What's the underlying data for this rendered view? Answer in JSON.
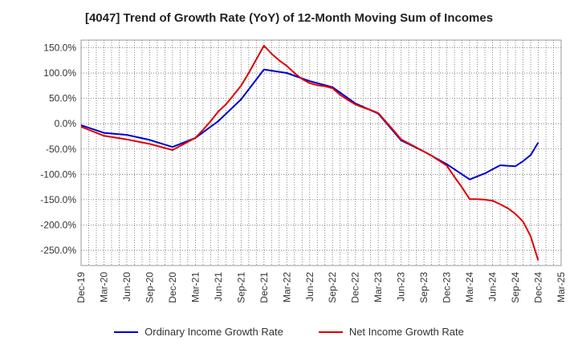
{
  "chart_data": {
    "type": "line",
    "title": "[4047]  Trend of Growth Rate (YoY) of 12-Month Moving Sum of Incomes",
    "xlabel": "",
    "ylabel": "",
    "ylim": [
      -280,
      165
    ],
    "y_ticks": [
      150,
      100,
      50,
      0,
      -50,
      -100,
      -150,
      -200,
      -250
    ],
    "y_tick_labels": [
      "150.0%",
      "100.0%",
      "50.0%",
      "0.0%",
      "-50.0%",
      "-100.0%",
      "-150.0%",
      "-200.0%",
      "-250.0%"
    ],
    "x_tick_labels": [
      "Dec-19",
      "Mar-20",
      "Jun-20",
      "Sep-20",
      "Dec-20",
      "Mar-21",
      "Jun-21",
      "Sep-21",
      "Dec-21",
      "Mar-22",
      "Jun-22",
      "Sep-22",
      "Dec-22",
      "Mar-23",
      "Jun-23",
      "Sep-23",
      "Dec-23",
      "Mar-24",
      "Jun-24",
      "Sep-24",
      "Dec-24",
      "Mar-25"
    ],
    "x_range_months": [
      0,
      63
    ],
    "grid": true,
    "legend_position": "bottom",
    "series": [
      {
        "name": "Ordinary Income Growth Rate",
        "color": "#0000cc",
        "x_months": [
          0,
          3,
          6,
          9,
          12,
          15,
          18,
          21,
          24,
          27,
          30,
          33,
          36,
          39,
          42,
          45,
          48,
          51,
          53,
          54,
          55,
          57,
          58,
          59,
          60
        ],
        "values": [
          -3,
          -18,
          -22,
          -32,
          -46,
          -28,
          5,
          48,
          107,
          100,
          84,
          72,
          40,
          20,
          -33,
          -55,
          -80,
          -110,
          -98,
          -90,
          -82,
          -84,
          -74,
          -62,
          -37
        ]
      },
      {
        "name": "Net Income Growth Rate",
        "color": "#dd0000",
        "x_months": [
          0,
          3,
          6,
          9,
          12,
          15,
          16,
          17,
          18,
          19,
          20,
          21,
          22,
          23,
          24,
          25,
          26,
          27,
          28,
          29,
          30,
          31,
          32,
          33,
          34,
          35,
          36,
          37,
          38,
          39,
          40,
          41,
          42,
          43,
          44,
          45,
          46,
          47,
          48,
          49,
          50,
          51,
          52,
          53,
          54,
          55,
          56,
          57,
          58,
          59,
          60
        ],
        "values": [
          -6,
          -24,
          -31,
          -40,
          -52,
          -28,
          -12,
          5,
          24,
          38,
          56,
          75,
          100,
          127,
          154,
          138,
          125,
          114,
          100,
          88,
          80,
          76,
          74,
          70,
          57,
          47,
          38,
          32,
          27,
          21,
          4,
          -13,
          -31,
          -39,
          -47,
          -55,
          -63,
          -73,
          -83,
          -105,
          -126,
          -149,
          -149,
          -150,
          -152,
          -159,
          -167,
          -178,
          -193,
          -222,
          -270
        ]
      }
    ]
  }
}
